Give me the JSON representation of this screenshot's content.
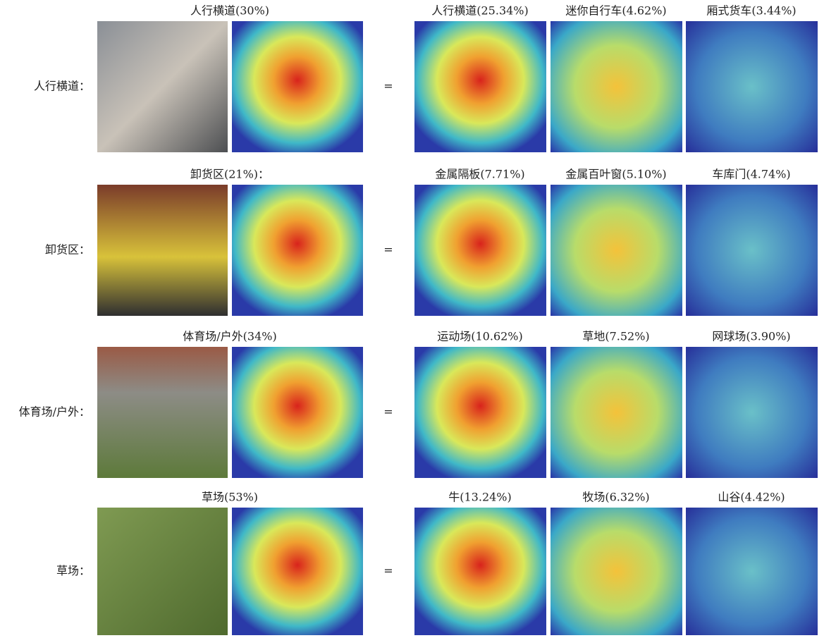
{
  "rows": [
    {
      "label": "人行横道：",
      "caption": "人行横道(30%)",
      "equals": "=",
      "parts": [
        "人行横道(25.34%)",
        "迷你自行车(4.62%)",
        "厢式货车(3.44%)"
      ]
    },
    {
      "label": "卸货区：",
      "caption": "卸货区(21%)：",
      "equals": "=",
      "parts": [
        "金属隔板(7.71%)",
        "金属百叶窗(5.10%)",
        "车库门(4.74%)"
      ]
    },
    {
      "label": "体育场/户外：",
      "caption": "体育场/户外(34%)",
      "equals": "=",
      "parts": [
        "运动场(10.62%)",
        "草地(7.52%)",
        "网球场(3.90%)"
      ]
    },
    {
      "label": "草场：",
      "caption": "草场(53%)",
      "equals": "=",
      "parts": [
        "牛(13.24%)",
        "牧场(6.32%)",
        "山谷(4.42%)"
      ]
    }
  ]
}
